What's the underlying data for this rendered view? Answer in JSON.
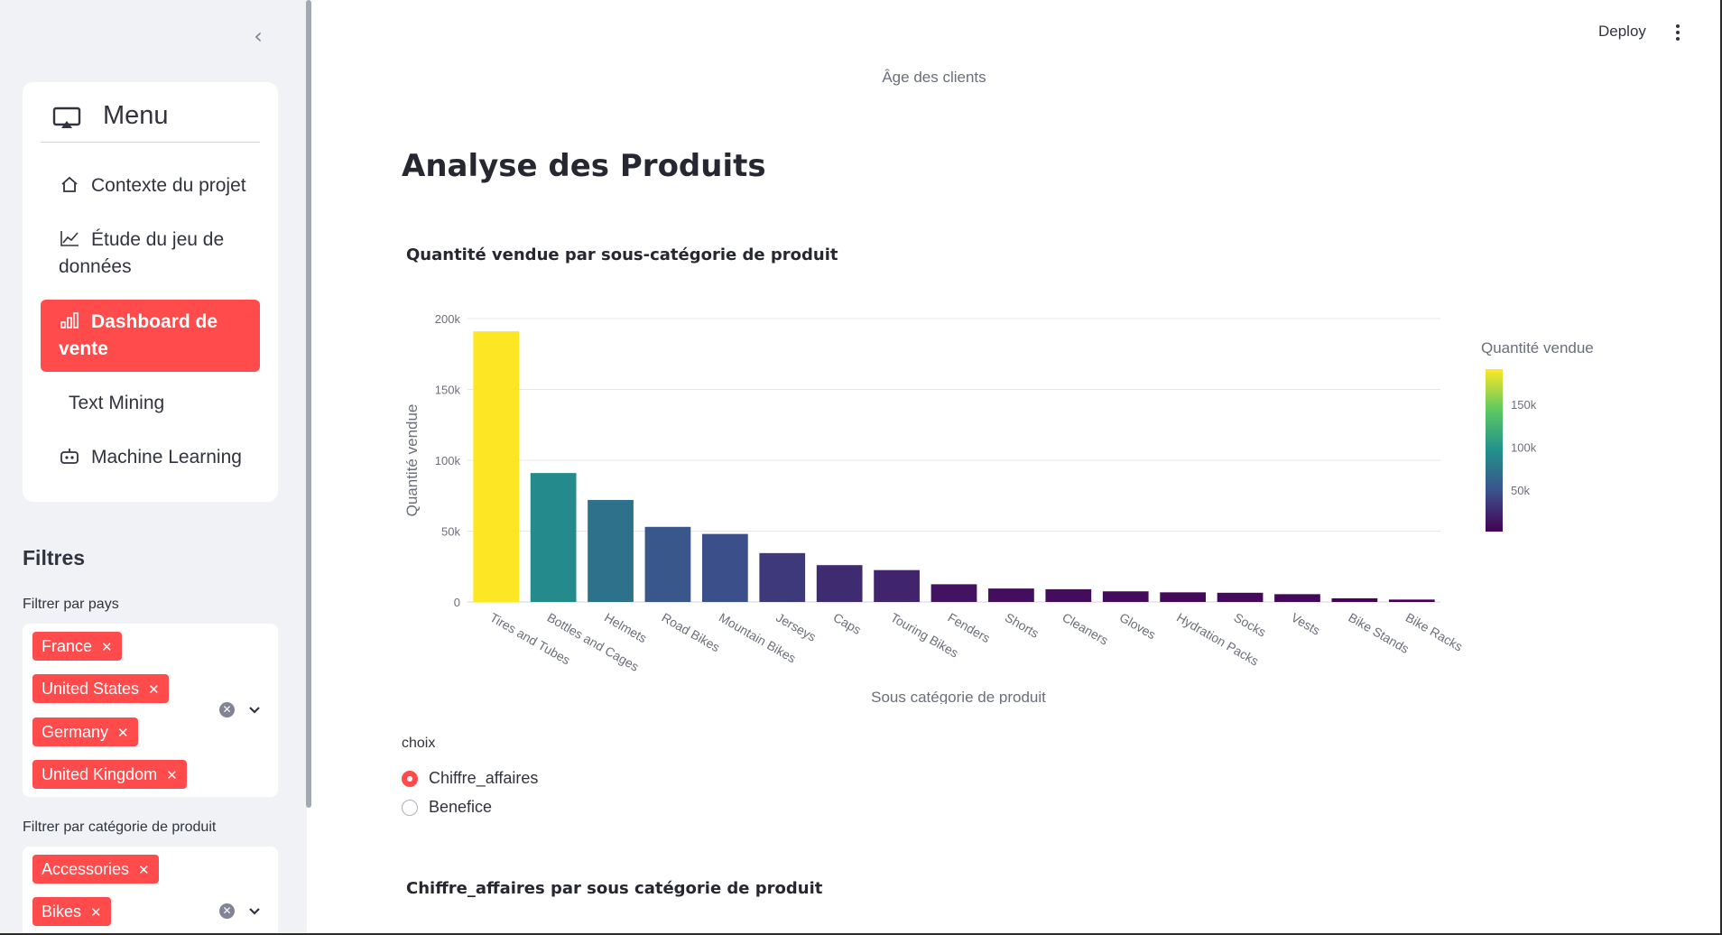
{
  "sidebar": {
    "collapse_icon": "chevron-left-icon",
    "menu": {
      "title": "Menu",
      "icon": "cast-icon",
      "items": [
        {
          "label": "Contexte du projet",
          "icon": "house-icon",
          "active": false
        },
        {
          "label": "Étude du jeu de données",
          "icon": "graph-up-icon",
          "active": false
        },
        {
          "label": "Dashboard de vente",
          "icon": "bar-chart-icon",
          "active": true
        },
        {
          "label": "Text Mining",
          "icon": "",
          "active": false
        },
        {
          "label": "Machine Learning",
          "icon": "robot-icon",
          "active": false
        }
      ]
    },
    "filters": {
      "title": "Filtres",
      "country": {
        "label": "Filtrer par pays",
        "selected": [
          "France",
          "United States",
          "Germany",
          "United Kingdom"
        ]
      },
      "category": {
        "label": "Filtrer par catégorie de produit",
        "selected": [
          "Accessories",
          "Bikes"
        ]
      }
    }
  },
  "header": {
    "deploy_label": "Deploy",
    "more_icon": "more-vertical-icon"
  },
  "main": {
    "age_caption": "Âge des clients",
    "page_title": "Analyse des Produits",
    "chart1_title": "Quantité vendue par sous-catégorie de produit",
    "radio": {
      "label": "choix",
      "options": [
        "Chiffre_affaires",
        "Benefice"
      ],
      "selected": "Chiffre_affaires"
    },
    "chart2_title": "Chiffre_affaires par sous catégorie de produit"
  },
  "colors": {
    "accent": "#ff4b4b",
    "sidebar_bg": "#f0f2f6"
  },
  "chart_data": {
    "type": "bar",
    "title": "Quantité vendue par sous-catégorie de produit",
    "xlabel": "Sous catégorie de produit",
    "ylabel": "Quantité vendue",
    "ylim": [
      0,
      200000
    ],
    "yticks": [
      0,
      50000,
      100000,
      150000,
      200000
    ],
    "ytick_labels": [
      "0",
      "50k",
      "100k",
      "150k",
      "200k"
    ],
    "grid": true,
    "categories": [
      "Tires and Tubes",
      "Bottles and Cages",
      "Helmets",
      "Road Bikes",
      "Mountain Bikes",
      "Jerseys",
      "Caps",
      "Touring Bikes",
      "Fenders",
      "Shorts",
      "Cleaners",
      "Gloves",
      "Hydration Packs",
      "Socks",
      "Vests",
      "Bike Stands",
      "Bike Racks"
    ],
    "values": [
      191000,
      91000,
      72000,
      53000,
      48000,
      34500,
      26000,
      22500,
      12500,
      9500,
      9000,
      7500,
      6800,
      6500,
      5500,
      2600,
      1700
    ],
    "colorbar": {
      "title": "Quantité vendue",
      "ticks": [
        50000,
        100000,
        150000
      ],
      "tick_labels": [
        "50k",
        "100k",
        "150k"
      ],
      "colorscale": "viridis",
      "placement": "right"
    }
  }
}
